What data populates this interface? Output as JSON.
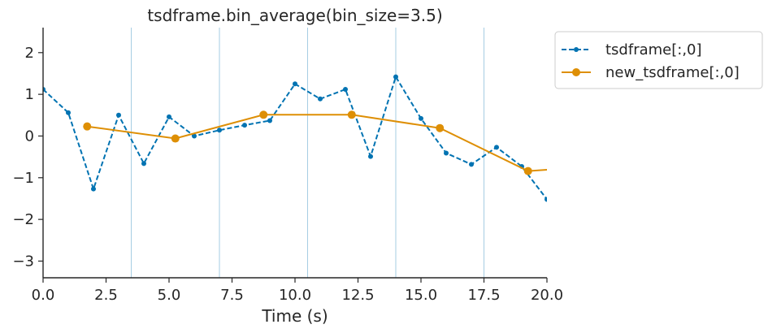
{
  "chart_data": {
    "type": "line",
    "title": "tsdframe.bin_average(bin_size=3.5)",
    "xlabel": "Time (s)",
    "ylabel": "",
    "xlim": [
      0,
      20
    ],
    "ylim": [
      -3.4,
      2.6
    ],
    "x_ticks": [
      0,
      2.5,
      5,
      7.5,
      10,
      12.5,
      15,
      17.5,
      20
    ],
    "x_tick_labels": [
      "0.0",
      "2.5",
      "5.0",
      "7.5",
      "10.0",
      "12.5",
      "15.0",
      "17.5",
      "20.0"
    ],
    "y_ticks": [
      -3,
      -2,
      -1,
      0,
      1,
      2
    ],
    "y_tick_labels": [
      "−3",
      "−2",
      "−1",
      "0",
      "1",
      "2"
    ],
    "bin_edges": [
      3.5,
      7,
      10.5,
      14,
      17.5
    ],
    "legend_position": "upper right, outside plot",
    "grid": false,
    "series": [
      {
        "name": "tsdframe[:,0]",
        "color": "#0173b2",
        "style": "dashed",
        "marker": "small-dot",
        "x": [
          0,
          1,
          2,
          3,
          4,
          5,
          6,
          7,
          8,
          9,
          10,
          11,
          12,
          13,
          14,
          15,
          16,
          17,
          18,
          19,
          20
        ],
        "y": [
          1.12,
          0.56,
          -1.27,
          0.5,
          -0.66,
          0.46,
          0.0,
          0.14,
          0.26,
          0.37,
          1.25,
          0.89,
          1.12,
          -0.49,
          1.42,
          0.42,
          -0.41,
          -0.68,
          -0.27,
          -0.73,
          -1.52
        ]
      },
      {
        "name": "new_tsdframe[:,0]",
        "color": "#de8f05",
        "style": "solid",
        "marker": "circle",
        "x": [
          1.75,
          5.25,
          8.75,
          12.25,
          15.75,
          19.25,
          21.0
        ],
        "y": [
          0.23,
          -0.06,
          0.51,
          0.51,
          0.19,
          -0.84,
          -0.77
        ]
      }
    ]
  }
}
